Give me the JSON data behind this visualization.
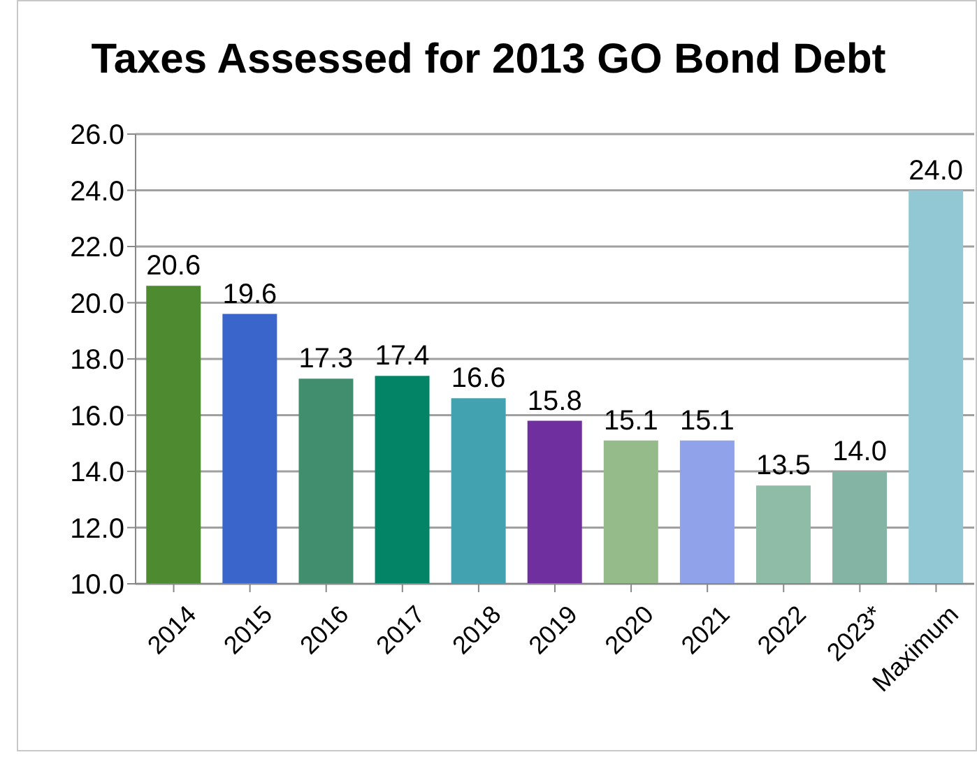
{
  "chart_data": {
    "type": "bar",
    "title": "Taxes Assessed for 2013 GO Bond Debt",
    "categories": [
      "2014",
      "2015",
      "2016",
      "2017",
      "2018",
      "2019",
      "2020",
      "2021",
      "2022",
      "2023*",
      "Maximum"
    ],
    "values": [
      20.6,
      19.6,
      17.3,
      17.4,
      16.6,
      15.8,
      15.1,
      15.1,
      13.5,
      14.0,
      24.0
    ],
    "value_labels": [
      "20.6",
      "19.6",
      "17.3",
      "17.4",
      "16.6",
      "15.8",
      "15.1",
      "15.1",
      "13.5",
      "14.0",
      "24.0"
    ],
    "colors": [
      "#4e8a2f",
      "#3a66cc",
      "#408e6e",
      "#048467",
      "#43a2b0",
      "#6f2f9f",
      "#96bb8a",
      "#8fa2ea",
      "#8fbca7",
      "#84b4a3",
      "#92c8d4"
    ],
    "ylim": [
      10,
      26
    ],
    "yticks": [
      {
        "value": 10,
        "label": "10.0"
      },
      {
        "value": 12,
        "label": "12.0"
      },
      {
        "value": 14,
        "label": "14.0"
      },
      {
        "value": 16,
        "label": "16.0"
      },
      {
        "value": 18,
        "label": "18.0"
      },
      {
        "value": 20,
        "label": "20.0"
      },
      {
        "value": 22,
        "label": "22.0"
      },
      {
        "value": 24,
        "label": "24.0"
      },
      {
        "value": 26,
        "label": "26.0"
      }
    ],
    "grid": "y"
  }
}
